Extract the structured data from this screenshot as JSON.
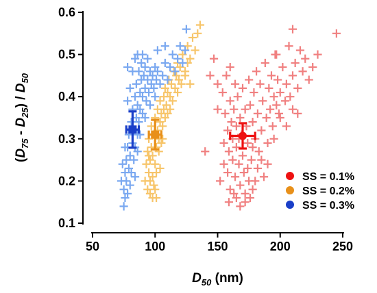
{
  "chart_data": {
    "type": "scatter",
    "xlabel": "D50 (nm)",
    "ylabel": "(D75 - D25) / D50",
    "xlim": [
      50,
      250
    ],
    "ylim": [
      0.1,
      0.6
    ],
    "xticks": [
      50,
      100,
      150,
      200,
      250
    ],
    "xtick_labels": [
      "50",
      "100",
      "150",
      "200",
      "250"
    ],
    "yticks": [
      0.1,
      0.2,
      0.3,
      0.4,
      0.5,
      0.6
    ],
    "ytick_labels": [
      "0.1",
      "0.2",
      "0.3",
      "0.4",
      "0.5",
      "0.6"
    ],
    "grid": false,
    "legend_position": "bottom-right",
    "series": [
      {
        "name": "SS = 0.1%",
        "color": "#f08080",
        "marker_color": "#ee1111",
        "mean": {
          "x": 170,
          "y": 0.307,
          "x_err": 10,
          "y_err": 0.03
        },
        "points": [
          [
            152,
            0.2
          ],
          [
            155,
            0.24
          ],
          [
            155,
            0.29
          ],
          [
            156,
            0.36
          ],
          [
            158,
            0.22
          ],
          [
            158,
            0.32
          ],
          [
            159,
            0.27
          ],
          [
            160,
            0.39
          ],
          [
            160,
            0.18
          ],
          [
            161,
            0.34
          ],
          [
            162,
            0.25
          ],
          [
            162,
            0.3
          ],
          [
            163,
            0.37
          ],
          [
            164,
            0.21
          ],
          [
            165,
            0.16
          ],
          [
            165,
            0.33
          ],
          [
            165,
            0.28
          ],
          [
            166,
            0.4
          ],
          [
            167,
            0.24
          ],
          [
            168,
            0.35
          ],
          [
            168,
            0.19
          ],
          [
            169,
            0.31
          ],
          [
            170,
            0.42
          ],
          [
            170,
            0.26
          ],
          [
            171,
            0.22
          ],
          [
            172,
            0.37
          ],
          [
            172,
            0.15
          ],
          [
            173,
            0.33
          ],
          [
            174,
            0.29
          ],
          [
            175,
            0.44
          ],
          [
            175,
            0.2
          ],
          [
            176,
            0.38
          ],
          [
            177,
            0.25
          ],
          [
            178,
            0.34
          ],
          [
            178,
            0.18
          ],
          [
            179,
            0.41
          ],
          [
            180,
            0.3
          ],
          [
            181,
            0.46
          ],
          [
            182,
            0.23
          ],
          [
            182,
            0.36
          ],
          [
            183,
            0.27
          ],
          [
            184,
            0.43
          ],
          [
            185,
            0.32
          ],
          [
            186,
            0.39
          ],
          [
            187,
            0.21
          ],
          [
            188,
            0.48
          ],
          [
            189,
            0.35
          ],
          [
            190,
            0.29
          ],
          [
            191,
            0.42
          ],
          [
            192,
            0.37
          ],
          [
            193,
            0.45
          ],
          [
            194,
            0.33
          ],
          [
            195,
            0.4
          ],
          [
            196,
            0.5
          ],
          [
            197,
            0.38
          ],
          [
            198,
            0.44
          ],
          [
            199,
            0.36
          ],
          [
            200,
            0.41
          ],
          [
            202,
            0.47
          ],
          [
            204,
            0.39
          ],
          [
            205,
            0.43
          ],
          [
            207,
            0.52
          ],
          [
            208,
            0.4
          ],
          [
            210,
            0.45
          ],
          [
            212,
            0.48
          ],
          [
            214,
            0.42
          ],
          [
            216,
            0.51
          ],
          [
            218,
            0.46
          ],
          [
            220,
            0.49
          ],
          [
            223,
            0.44
          ],
          [
            226,
            0.47
          ],
          [
            230,
            0.5
          ],
          [
            245,
            0.55
          ],
          [
            210,
            0.56
          ],
          [
            197,
            0.5
          ],
          [
            140,
            0.27
          ],
          [
            144,
            0.45
          ],
          [
            147,
            0.49
          ],
          [
            150,
            0.37
          ],
          [
            150,
            0.43
          ],
          [
            154,
            0.41
          ],
          [
            157,
            0.45
          ],
          [
            160,
            0.47
          ],
          [
            164,
            0.43
          ],
          [
            159,
            0.15
          ],
          [
            163,
            0.17
          ],
          [
            168,
            0.14
          ],
          [
            172,
            0.17
          ],
          [
            176,
            0.16
          ],
          [
            180,
            0.2
          ],
          [
            185,
            0.25
          ],
          [
            190,
            0.24
          ],
          [
            195,
            0.3
          ],
          [
            200,
            0.35
          ],
          [
            205,
            0.33
          ],
          [
            210,
            0.37
          ],
          [
            214,
            0.36
          ],
          [
            174,
            0.23
          ],
          [
            167,
            0.3
          ],
          [
            178,
            0.28
          ]
        ]
      },
      {
        "name": "SS = 0.2%",
        "color": "#f7c56a",
        "marker_color": "#e8901a",
        "mean": {
          "x": 100,
          "y": 0.31,
          "x_err": 5,
          "y_err": 0.035
        },
        "points": [
          [
            92,
            0.2
          ],
          [
            93,
            0.24
          ],
          [
            94,
            0.27
          ],
          [
            94,
            0.18
          ],
          [
            95,
            0.22
          ],
          [
            95,
            0.3
          ],
          [
            96,
            0.25
          ],
          [
            96,
            0.17
          ],
          [
            97,
            0.28
          ],
          [
            97,
            0.33
          ],
          [
            98,
            0.21
          ],
          [
            98,
            0.26
          ],
          [
            99,
            0.31
          ],
          [
            99,
            0.19
          ],
          [
            100,
            0.24
          ],
          [
            100,
            0.35
          ],
          [
            101,
            0.28
          ],
          [
            101,
            0.22
          ],
          [
            102,
            0.32
          ],
          [
            102,
            0.37
          ],
          [
            103,
            0.27
          ],
          [
            103,
            0.3
          ],
          [
            104,
            0.34
          ],
          [
            104,
            0.39
          ],
          [
            105,
            0.29
          ],
          [
            105,
            0.36
          ],
          [
            106,
            0.33
          ],
          [
            107,
            0.4
          ],
          [
            107,
            0.37
          ],
          [
            108,
            0.35
          ],
          [
            108,
            0.42
          ],
          [
            109,
            0.38
          ],
          [
            110,
            0.41
          ],
          [
            110,
            0.36
          ],
          [
            111,
            0.44
          ],
          [
            112,
            0.4
          ],
          [
            113,
            0.43
          ],
          [
            114,
            0.39
          ],
          [
            115,
            0.46
          ],
          [
            116,
            0.42
          ],
          [
            117,
            0.45
          ],
          [
            118,
            0.48
          ],
          [
            119,
            0.44
          ],
          [
            120,
            0.47
          ],
          [
            121,
            0.43
          ],
          [
            122,
            0.5
          ],
          [
            124,
            0.46
          ],
          [
            126,
            0.52
          ],
          [
            128,
            0.49
          ],
          [
            130,
            0.54
          ],
          [
            132,
            0.51
          ],
          [
            134,
            0.55
          ],
          [
            136,
            0.57
          ],
          [
            126,
            0.48
          ],
          [
            98,
            0.16
          ],
          [
            96,
            0.2
          ],
          [
            100,
            0.18
          ],
          [
            104,
            0.23
          ],
          [
            95,
            0.26
          ],
          [
            101,
            0.16
          ],
          [
            106,
            0.3
          ],
          [
            112,
            0.37
          ],
          [
            118,
            0.41
          ],
          [
            124,
            0.45
          ],
          [
            128,
            0.43
          ]
        ]
      },
      {
        "name": "SS = 0.3%",
        "color": "#7aa8f0",
        "marker_color": "#1a3fc8",
        "mean": {
          "x": 82,
          "y": 0.322,
          "x_err": 5,
          "y_err": 0.043
        },
        "points": [
          [
            75,
            0.14
          ],
          [
            75,
            0.18
          ],
          [
            76,
            0.22
          ],
          [
            76,
            0.16
          ],
          [
            77,
            0.25
          ],
          [
            77,
            0.2
          ],
          [
            78,
            0.28
          ],
          [
            78,
            0.17
          ],
          [
            79,
            0.23
          ],
          [
            79,
            0.31
          ],
          [
            80,
            0.19
          ],
          [
            80,
            0.26
          ],
          [
            81,
            0.34
          ],
          [
            81,
            0.22
          ],
          [
            82,
            0.29
          ],
          [
            82,
            0.37
          ],
          [
            83,
            0.25
          ],
          [
            83,
            0.32
          ],
          [
            84,
            0.4
          ],
          [
            84,
            0.28
          ],
          [
            85,
            0.35
          ],
          [
            85,
            0.43
          ],
          [
            86,
            0.31
          ],
          [
            86,
            0.38
          ],
          [
            87,
            0.46
          ],
          [
            87,
            0.34
          ],
          [
            88,
            0.41
          ],
          [
            88,
            0.37
          ],
          [
            89,
            0.44
          ],
          [
            89,
            0.48
          ],
          [
            90,
            0.4
          ],
          [
            90,
            0.36
          ],
          [
            91,
            0.45
          ],
          [
            92,
            0.42
          ],
          [
            92,
            0.47
          ],
          [
            93,
            0.39
          ],
          [
            94,
            0.44
          ],
          [
            95,
            0.41
          ],
          [
            96,
            0.46
          ],
          [
            97,
            0.43
          ],
          [
            98,
            0.45
          ],
          [
            99,
            0.42
          ],
          [
            100,
            0.47
          ],
          [
            101,
            0.44
          ],
          [
            102,
            0.46
          ],
          [
            104,
            0.43
          ],
          [
            106,
            0.45
          ],
          [
            108,
            0.48
          ],
          [
            110,
            0.44
          ],
          [
            112,
            0.47
          ],
          [
            114,
            0.5
          ],
          [
            116,
            0.46
          ],
          [
            118,
            0.49
          ],
          [
            120,
            0.52
          ],
          [
            122,
            0.48
          ],
          [
            124,
            0.51
          ],
          [
            125,
            0.56
          ],
          [
            78,
            0.39
          ],
          [
            80,
            0.42
          ],
          [
            82,
            0.46
          ],
          [
            84,
            0.49
          ],
          [
            78,
            0.47
          ],
          [
            86,
            0.5
          ],
          [
            90,
            0.5
          ],
          [
            94,
            0.49
          ],
          [
            102,
            0.51
          ],
          [
            108,
            0.52
          ],
          [
            76,
            0.28
          ],
          [
            74,
            0.24
          ],
          [
            73,
            0.2
          ],
          [
            86,
            0.27
          ],
          [
            88,
            0.31
          ],
          [
            84,
            0.21
          ],
          [
            92,
            0.35
          ],
          [
            96,
            0.38
          ],
          [
            100,
            0.4
          ]
        ]
      }
    ]
  }
}
